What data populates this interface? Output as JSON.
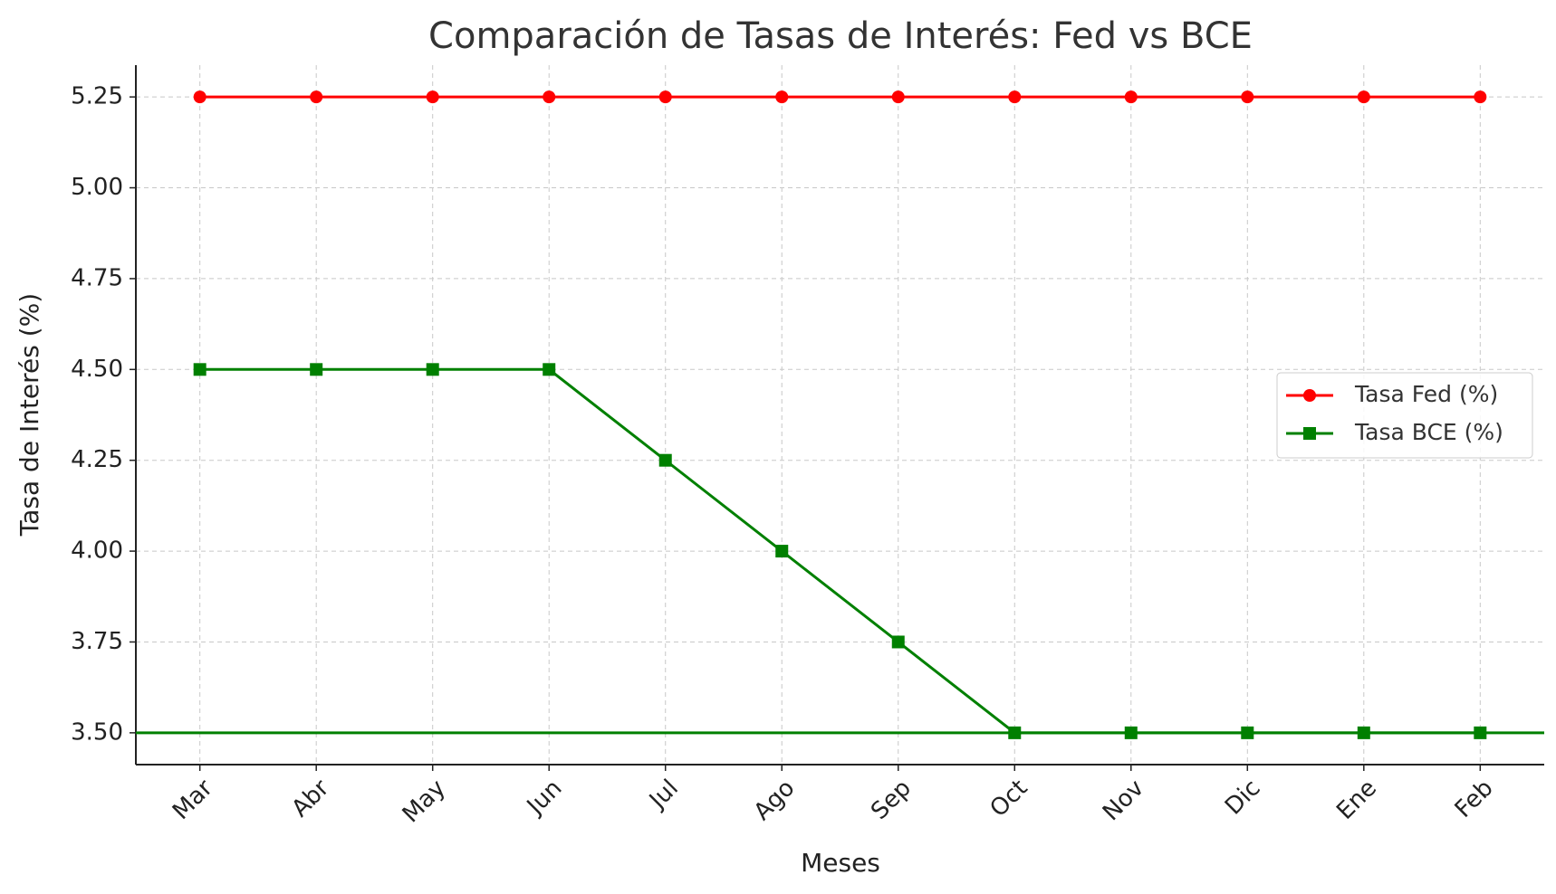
{
  "chart_data": {
    "type": "line",
    "title": "Comparación de Tasas de Interés: Fed vs BCE",
    "x_label": "Meses",
    "y_label": "Tasa de Interés (%)",
    "categories": [
      "Mar",
      "Abr",
      "May",
      "Jun",
      "Jul",
      "Ago",
      "Sep",
      "Oct",
      "Nov",
      "Dic",
      "Ene",
      "Feb"
    ],
    "series": [
      {
        "name": "Tasa Fed (%)",
        "color": "#ff0000",
        "marker": "circle",
        "values": [
          5.25,
          5.25,
          5.25,
          5.25,
          5.25,
          5.25,
          5.25,
          5.25,
          5.25,
          5.25,
          5.25,
          5.25
        ]
      },
      {
        "name": "Tasa BCE (%)",
        "color": "#008000",
        "marker": "square",
        "values": [
          4.5,
          4.5,
          4.5,
          4.5,
          4.25,
          4.0,
          3.75,
          3.5,
          3.5,
          3.5,
          3.5,
          3.5
        ]
      }
    ],
    "hlines": [
      {
        "y": 3.5,
        "color": "#008000"
      }
    ],
    "ylim": [
      3.4125,
      5.3375
    ],
    "yticks": [
      {
        "value": 3.5,
        "label": "3.50"
      },
      3.75,
      {
        "value": 4.0,
        "label": "4.00"
      },
      4.25,
      {
        "value": 4.5,
        "label": "4.50"
      },
      4.75,
      {
        "value": 5.0,
        "label": "5.00"
      },
      5.25
    ],
    "grid": true,
    "legend": "right"
  }
}
